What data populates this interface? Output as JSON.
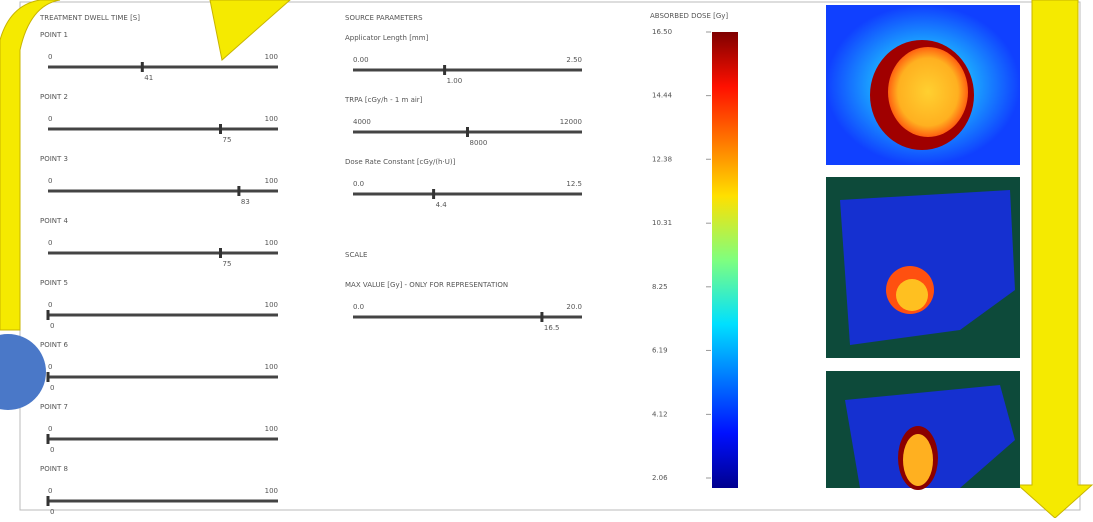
{
  "dwell_time": {
    "title": "TREATMENT DWELL TIME [S]",
    "points": [
      {
        "label": "POINT 1",
        "min": 0,
        "max": 100,
        "value": 41
      },
      {
        "label": "POINT 2",
        "min": 0,
        "max": 100,
        "value": 75
      },
      {
        "label": "POINT 3",
        "min": 0,
        "max": 100,
        "value": 83
      },
      {
        "label": "POINT 4",
        "min": 0,
        "max": 100,
        "value": 75
      },
      {
        "label": "POINT 5",
        "min": 0,
        "max": 100,
        "value": 0
      },
      {
        "label": "POINT 6",
        "min": 0,
        "max": 100,
        "value": 0
      },
      {
        "label": "POINT 7",
        "min": 0,
        "max": 100,
        "value": 0
      },
      {
        "label": "POINT 8",
        "min": 0,
        "max": 100,
        "value": 0
      }
    ]
  },
  "source_parameters": {
    "title": "SOURCE PARAMETERS",
    "sliders": [
      {
        "label": "Applicator Length [mm]",
        "min": {
          "value": 0,
          "label": "0.00"
        },
        "max": {
          "value": 2.5,
          "label": "2.50"
        },
        "value": {
          "value": 1,
          "label": "1.00"
        }
      },
      {
        "label": "TRPA [cGy/h - 1 m air]",
        "min": 4000,
        "max": 12000,
        "value": 8000
      },
      {
        "label": "Dose Rate Constant [cGy/(h·U)]",
        "min": {
          "value": 0,
          "label": "0.0"
        },
        "max": {
          "value": 12.5,
          "label": "12.5"
        },
        "value": {
          "value": 4.4,
          "label": "4.4"
        }
      }
    ]
  },
  "scale": {
    "title": "SCALE",
    "slider": {
      "label": "MAX VALUE [Gy] - ONLY FOR REPRESENTATION",
      "min": {
        "value": 0,
        "label": "0.0"
      },
      "max": {
        "value": 20,
        "label": "20.0"
      },
      "value": {
        "value": 16.5,
        "label": "16.5"
      }
    }
  },
  "colorbar": {
    "title": "ABSORBED DOSE [Gy]",
    "ticks": [
      {
        "value": 16.5,
        "label": "16.50"
      },
      {
        "value": 14.44,
        "label": "14.44"
      },
      {
        "value": 12.38,
        "label": "12.38"
      },
      {
        "value": 10.31,
        "label": "10.31"
      },
      {
        "value": 8.25,
        "label": "8.25"
      },
      {
        "value": 6.19,
        "label": "6.19"
      },
      {
        "value": 4.12,
        "label": "4.12"
      },
      {
        "value": 2.06,
        "label": "2.06"
      }
    ]
  }
}
